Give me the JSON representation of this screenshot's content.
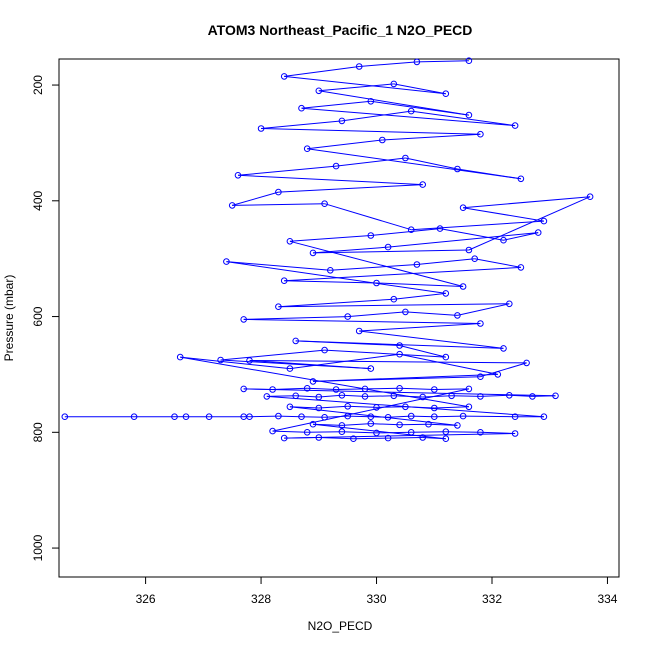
{
  "chart_data": {
    "type": "line",
    "title": "ATOM3 Northeast_Pacific_1 N2O_PECD",
    "xlabel": "N2O_PECD",
    "ylabel": "Pressure (mbar)",
    "xlim": [
      324.5,
      334.2
    ],
    "ylim": [
      1050,
      155
    ],
    "y_reversed": true,
    "x_ticks": [
      326,
      328,
      330,
      332,
      334
    ],
    "y_ticks": [
      200,
      400,
      600,
      800,
      1000
    ],
    "grid": false,
    "series": [
      {
        "color": "#0000ff",
        "marker": "open-circle",
        "points": [
          [
            324.6,
            773
          ],
          [
            325.8,
            773
          ],
          [
            326.5,
            773
          ],
          [
            326.7,
            773
          ],
          [
            327.1,
            773
          ],
          [
            327.7,
            773
          ],
          [
            327.8,
            773
          ],
          [
            328.3,
            772
          ],
          [
            328.7,
            773
          ],
          [
            329.1,
            774
          ],
          [
            329.5,
            772
          ],
          [
            329.9,
            773
          ],
          [
            330.2,
            774
          ],
          [
            330.6,
            772
          ],
          [
            331.0,
            773
          ],
          [
            331.5,
            772
          ],
          [
            332.4,
            773
          ],
          [
            332.9,
            773
          ],
          [
            328.1,
            738
          ],
          [
            328.6,
            737
          ],
          [
            329.0,
            739
          ],
          [
            329.4,
            736
          ],
          [
            329.8,
            738
          ],
          [
            330.3,
            737
          ],
          [
            330.8,
            739
          ],
          [
            331.3,
            737
          ],
          [
            331.8,
            738
          ],
          [
            332.3,
            736
          ],
          [
            332.7,
            738
          ],
          [
            333.1,
            737
          ],
          [
            327.7,
            725
          ],
          [
            328.2,
            726
          ],
          [
            328.8,
            724
          ],
          [
            329.3,
            726
          ],
          [
            329.8,
            725
          ],
          [
            330.4,
            724
          ],
          [
            331.0,
            726
          ],
          [
            331.6,
            725
          ],
          [
            328.2,
            798
          ],
          [
            328.8,
            800
          ],
          [
            329.4,
            799
          ],
          [
            330.0,
            801
          ],
          [
            330.6,
            800
          ],
          [
            331.2,
            799
          ],
          [
            331.8,
            800
          ],
          [
            332.4,
            802
          ],
          [
            328.4,
            810
          ],
          [
            329.0,
            809
          ],
          [
            329.6,
            811
          ],
          [
            330.2,
            810
          ],
          [
            330.8,
            809
          ],
          [
            331.2,
            811
          ],
          [
            328.9,
            786
          ],
          [
            329.4,
            788
          ],
          [
            329.9,
            785
          ],
          [
            330.4,
            787
          ],
          [
            330.9,
            786
          ],
          [
            331.4,
            788
          ],
          [
            328.5,
            756
          ],
          [
            329.0,
            758
          ],
          [
            329.5,
            755
          ],
          [
            330.0,
            757
          ],
          [
            330.5,
            756
          ],
          [
            331.0,
            758
          ],
          [
            331.6,
            756
          ],
          [
            326.6,
            670
          ],
          [
            328.5,
            690
          ],
          [
            330.4,
            665
          ],
          [
            332.1,
            700
          ],
          [
            328.9,
            712
          ],
          [
            331.8,
            704
          ],
          [
            332.6,
            680
          ],
          [
            327.8,
            676
          ],
          [
            329.9,
            690
          ],
          [
            327.3,
            675
          ],
          [
            329.1,
            658
          ],
          [
            331.2,
            670
          ],
          [
            330.4,
            650
          ],
          [
            328.6,
            642
          ],
          [
            332.2,
            655
          ],
          [
            329.7,
            625
          ],
          [
            331.8,
            612
          ],
          [
            327.7,
            605
          ],
          [
            329.5,
            600
          ],
          [
            330.5,
            592
          ],
          [
            331.4,
            598
          ],
          [
            332.3,
            578
          ],
          [
            328.3,
            583
          ],
          [
            330.3,
            570
          ],
          [
            331.2,
            560
          ],
          [
            327.4,
            505
          ],
          [
            329.2,
            520
          ],
          [
            330.7,
            510
          ],
          [
            331.7,
            500
          ],
          [
            332.5,
            515
          ],
          [
            328.4,
            538
          ],
          [
            330.0,
            542
          ],
          [
            331.5,
            548
          ],
          [
            328.5,
            470
          ],
          [
            329.9,
            460
          ],
          [
            331.1,
            448
          ],
          [
            332.2,
            468
          ],
          [
            332.8,
            455
          ],
          [
            330.2,
            480
          ],
          [
            328.9,
            490
          ],
          [
            331.6,
            485
          ],
          [
            333.7,
            393
          ],
          [
            331.5,
            412
          ],
          [
            332.9,
            435
          ],
          [
            330.6,
            450
          ],
          [
            329.1,
            405
          ],
          [
            327.5,
            408
          ],
          [
            328.3,
            385
          ],
          [
            330.8,
            372
          ],
          [
            327.6,
            356
          ],
          [
            329.3,
            340
          ],
          [
            330.5,
            326
          ],
          [
            331.4,
            345
          ],
          [
            332.5,
            362
          ],
          [
            328.8,
            310
          ],
          [
            330.1,
            295
          ],
          [
            331.8,
            285
          ],
          [
            328.0,
            275
          ],
          [
            329.4,
            262
          ],
          [
            330.6,
            245
          ],
          [
            332.4,
            270
          ],
          [
            328.7,
            240
          ],
          [
            329.9,
            228
          ],
          [
            331.6,
            252
          ],
          [
            329.0,
            210
          ],
          [
            330.3,
            198
          ],
          [
            331.2,
            215
          ],
          [
            328.4,
            185
          ],
          [
            329.7,
            168
          ],
          [
            330.7,
            160
          ],
          [
            331.6,
            158
          ]
        ]
      }
    ]
  }
}
